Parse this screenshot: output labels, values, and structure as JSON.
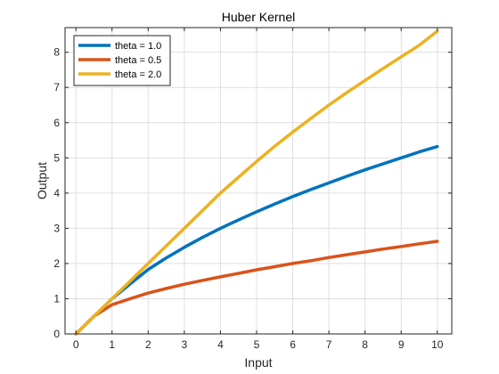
{
  "chart_data": {
    "type": "line",
    "title": "Huber Kernel",
    "xlabel": "Input",
    "ylabel": "Output",
    "xlim": [
      -0.3,
      10.4
    ],
    "ylim": [
      0,
      8.7
    ],
    "xticks": [
      "0",
      "1",
      "2",
      "3",
      "4",
      "5",
      "6",
      "7",
      "8",
      "9",
      "10"
    ],
    "yticks": [
      "0",
      "1",
      "2",
      "3",
      "4",
      "5",
      "6",
      "7",
      "8"
    ],
    "grid": true,
    "legend_position": "top-left",
    "x": [
      0,
      0.5,
      1,
      1.5,
      2,
      2.5,
      3,
      3.5,
      4,
      4.5,
      5,
      5.5,
      6,
      6.5,
      7,
      7.5,
      8,
      8.5,
      9,
      9.5,
      10
    ],
    "series": [
      {
        "name": "theta = 1.0",
        "color": "#0072BD",
        "values": [
          0,
          0.5,
          1.0,
          1.42,
          1.83,
          2.16,
          2.46,
          2.74,
          3.0,
          3.24,
          3.47,
          3.69,
          3.9,
          4.1,
          4.29,
          4.48,
          4.66,
          4.83,
          5.0,
          5.17,
          5.32
        ]
      },
      {
        "name": "theta = 0.5",
        "color": "#D95319",
        "values": [
          0,
          0.5,
          0.83,
          1.0,
          1.16,
          1.29,
          1.41,
          1.52,
          1.62,
          1.72,
          1.82,
          1.91,
          2.0,
          2.08,
          2.17,
          2.25,
          2.33,
          2.41,
          2.48,
          2.56,
          2.63
        ]
      },
      {
        "name": "theta = 2.0",
        "color": "#EDB120",
        "values": [
          0,
          0.5,
          1.0,
          1.5,
          2.0,
          2.5,
          3.0,
          3.5,
          4.0,
          4.45,
          4.9,
          5.33,
          5.73,
          6.12,
          6.5,
          6.86,
          7.2,
          7.54,
          7.87,
          8.2,
          8.6
        ]
      }
    ]
  }
}
